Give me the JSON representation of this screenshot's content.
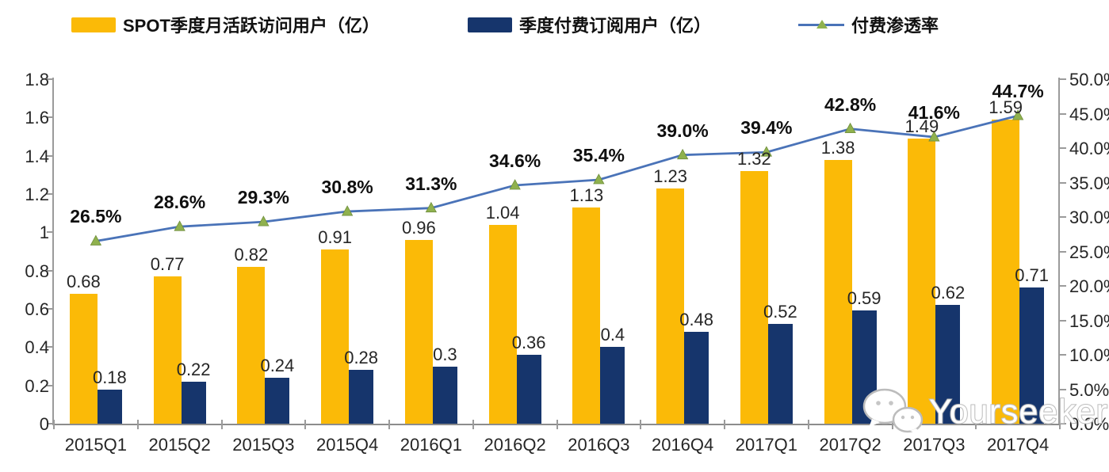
{
  "legend": {
    "items": [
      {
        "label": "SPOT季度月活跃访问用户（亿）",
        "swatch": "bar",
        "color": "#FBBA07"
      },
      {
        "label": "季度付费订阅用户（亿）",
        "swatch": "bar",
        "color": "#16356C"
      },
      {
        "label": "付费渗透率",
        "swatch": "line-marker",
        "color": "#4A73B8",
        "marker_color": "#8FB14E"
      }
    ]
  },
  "chart_data": {
    "type": "combo-bar-line",
    "categories": [
      "2015Q1",
      "2015Q2",
      "2015Q3",
      "2015Q4",
      "2016Q1",
      "2016Q2",
      "2016Q3",
      "2016Q4",
      "2017Q1",
      "2017Q2",
      "2017Q3",
      "2017Q4"
    ],
    "series": [
      {
        "name": "SPOT季度月活跃访问用户（亿）",
        "type": "bar",
        "axis": "left",
        "color": "#FBBA07",
        "values": [
          0.68,
          0.77,
          0.82,
          0.91,
          0.96,
          1.04,
          1.13,
          1.23,
          1.32,
          1.38,
          1.49,
          1.59
        ],
        "labels": [
          "0.68",
          "0.77",
          "0.82",
          "0.91",
          "0.96",
          "1.04",
          "1.13",
          "1.23",
          "1.32",
          "1.38",
          "1.49",
          "1.59"
        ]
      },
      {
        "name": "季度付费订阅用户（亿）",
        "type": "bar",
        "axis": "left",
        "color": "#16356C",
        "values": [
          0.18,
          0.22,
          0.24,
          0.28,
          0.3,
          0.36,
          0.4,
          0.48,
          0.52,
          0.59,
          0.62,
          0.71
        ],
        "labels": [
          "0.18",
          "0.22",
          "0.24",
          "0.28",
          "0.3",
          "0.36",
          "0.4",
          "0.48",
          "0.52",
          "0.59",
          "0.62",
          "0.71"
        ]
      },
      {
        "name": "付费渗透率",
        "type": "line",
        "axis": "right",
        "color": "#4A73B8",
        "marker": "triangle",
        "marker_color": "#8FB14E",
        "values": [
          26.5,
          28.6,
          29.3,
          30.8,
          31.3,
          34.6,
          35.4,
          39.0,
          39.4,
          42.8,
          41.6,
          44.7
        ],
        "labels": [
          "26.5%",
          "28.6%",
          "29.3%",
          "30.8%",
          "31.3%",
          "34.6%",
          "35.4%",
          "39.0%",
          "39.4%",
          "42.8%",
          "41.6%",
          "44.7%"
        ]
      }
    ],
    "left_axis": {
      "min": 0,
      "max": 1.8,
      "step": 0.2,
      "ticks": [
        "0",
        "0.2",
        "0.4",
        "0.6",
        "0.8",
        "1",
        "1.2",
        "1.4",
        "1.6",
        "1.8"
      ]
    },
    "right_axis": {
      "min": 0,
      "max": 50,
      "step": 5,
      "ticks": [
        "0.0%",
        "5.0%",
        "10.0%",
        "15.0%",
        "20.0%",
        "25.0%",
        "30.0%",
        "35.0%",
        "40.0%",
        "45.0%",
        "50.0%"
      ]
    },
    "grid": false,
    "legend_position": "top"
  },
  "watermark": {
    "text": "Yourseeker",
    "icon": "wechat-icon"
  }
}
